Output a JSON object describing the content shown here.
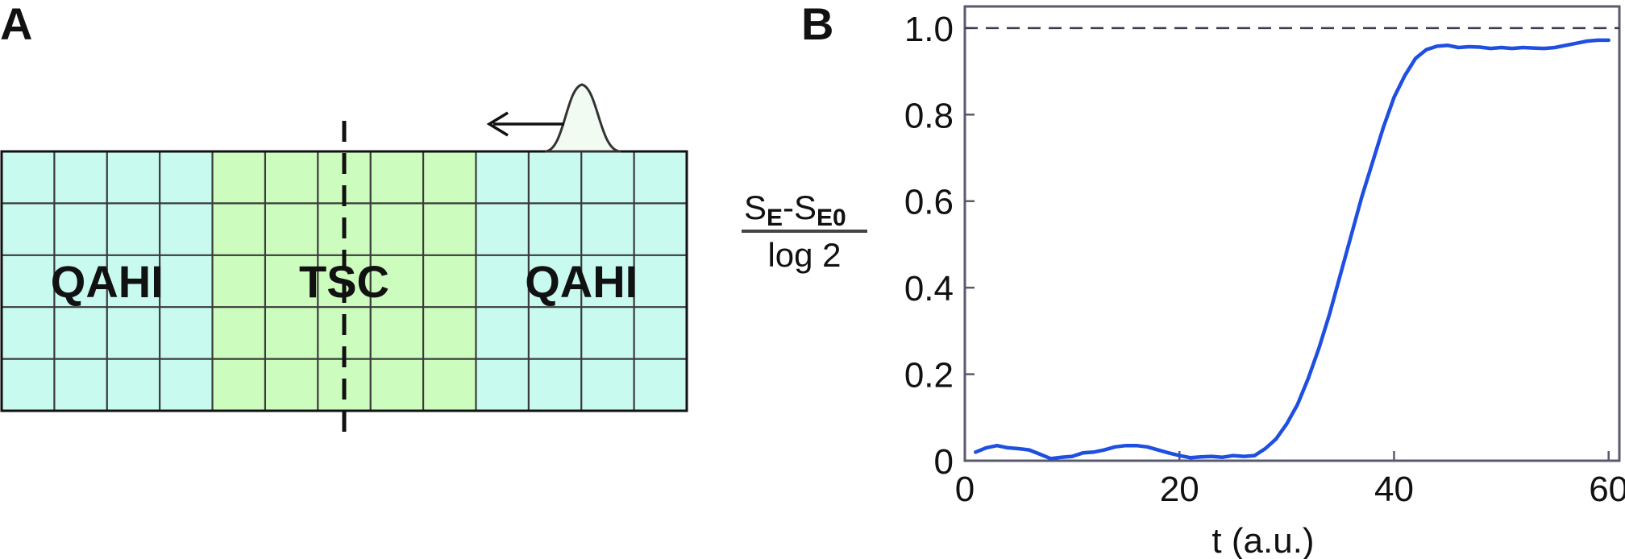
{
  "panels": {
    "a_label": "A",
    "b_label": "B"
  },
  "lattice": {
    "columns": 13,
    "rows": 5,
    "regions": [
      {
        "label": "QAHI",
        "from_col": 0,
        "to_col": 4,
        "color": "#c8faf0"
      },
      {
        "label": "TSC",
        "from_col": 4,
        "to_col": 9,
        "color": "#cdfcbf"
      },
      {
        "label": "QAHI",
        "from_col": 9,
        "to_col": 13,
        "color": "#c8faf0"
      }
    ],
    "grid_color": "#3a3a3a",
    "wavepacket_color": "#f2fbf2"
  },
  "chart_data": {
    "type": "line",
    "xlabel": "t (a.u.)",
    "ylabel": {
      "numerator_main": "S",
      "numerator_sub1": "E",
      "numerator_minus": "-S",
      "numerator_sub2": "E0",
      "denominator": "log 2"
    },
    "xlim": [
      0,
      61
    ],
    "ylim": [
      0,
      1.05
    ],
    "xticks": [
      0,
      20,
      40,
      60
    ],
    "xtick_labels": [
      "0",
      "20",
      "40",
      "60"
    ],
    "yticks": [
      0,
      0.2,
      0.4,
      0.6,
      0.8,
      1.0
    ],
    "ytick_labels": [
      "0",
      "0.2",
      "0.4",
      "0.6",
      "0.8",
      "1.0"
    ],
    "reference_line": {
      "y": 1.0,
      "style": "dashed",
      "color": "#3a3a50"
    },
    "series": [
      {
        "color": "#1f4fe0",
        "x": [
          1,
          2,
          3,
          4,
          5,
          6,
          7,
          8,
          9,
          10,
          11,
          12,
          13,
          14,
          15,
          16,
          17,
          18,
          19,
          20,
          21,
          22,
          23,
          24,
          25,
          26,
          27,
          28,
          29,
          30,
          31,
          32,
          33,
          34,
          35,
          36,
          37,
          38,
          39,
          40,
          41,
          42,
          43,
          44,
          45,
          46,
          47,
          48,
          49,
          50,
          51,
          52,
          53,
          54,
          55,
          56,
          57,
          58,
          59,
          60
        ],
        "y": [
          0.02,
          0.03,
          0.035,
          0.03,
          0.028,
          0.025,
          0.015,
          0.005,
          0.008,
          0.01,
          0.018,
          0.02,
          0.025,
          0.032,
          0.035,
          0.035,
          0.032,
          0.025,
          0.018,
          0.012,
          0.007,
          0.009,
          0.01,
          0.008,
          0.012,
          0.01,
          0.012,
          0.028,
          0.05,
          0.085,
          0.13,
          0.19,
          0.26,
          0.34,
          0.43,
          0.52,
          0.61,
          0.69,
          0.77,
          0.84,
          0.89,
          0.93,
          0.95,
          0.958,
          0.96,
          0.955,
          0.957,
          0.956,
          0.953,
          0.955,
          0.953,
          0.955,
          0.954,
          0.953,
          0.955,
          0.96,
          0.965,
          0.97,
          0.972,
          0.972
        ]
      }
    ]
  }
}
